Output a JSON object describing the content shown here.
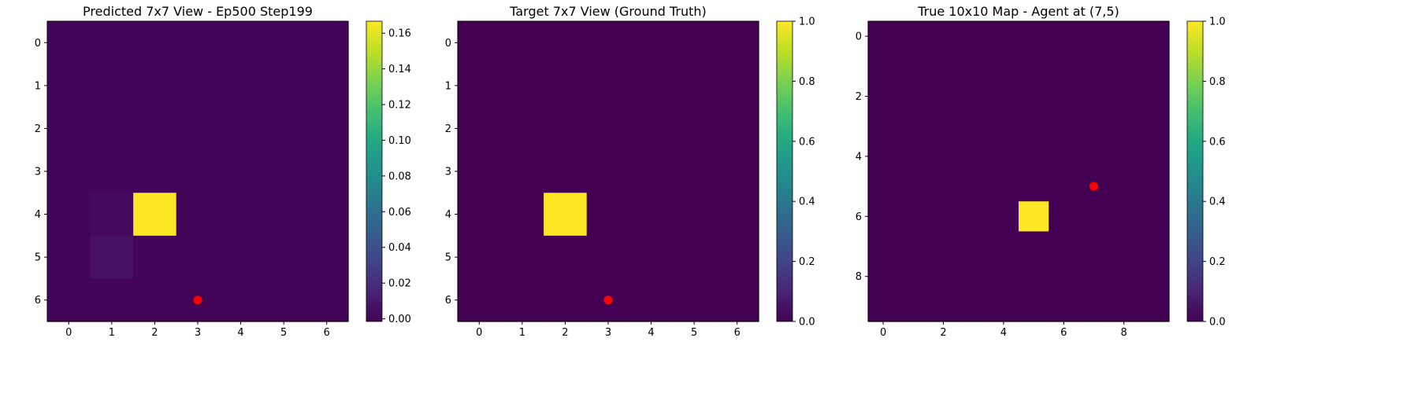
{
  "chart_data": [
    {
      "type": "heatmap",
      "title": "Predicted 7x7 View - Ep500 Step199",
      "xlabel": "",
      "ylabel": "",
      "rows": 7,
      "cols": 7,
      "x_ticks": [
        "0",
        "1",
        "2",
        "3",
        "4",
        "5",
        "6"
      ],
      "y_ticks": [
        "0",
        "1",
        "2",
        "3",
        "4",
        "5",
        "6"
      ],
      "colorbar_ticks": [
        "0.00",
        "0.02",
        "0.04",
        "0.06",
        "0.08",
        "0.10",
        "0.12",
        "0.14",
        "0.16"
      ],
      "vmin": -0.0015,
      "vmax": 0.1667,
      "colormap": "viridis",
      "values": [
        [
          0.0,
          0.0,
          0.0,
          0.0,
          0.0,
          0.0,
          0.0
        ],
        [
          0.0,
          0.0,
          0.0,
          0.0,
          0.0,
          0.0,
          0.0
        ],
        [
          0.0,
          0.0,
          0.0,
          0.0,
          0.0,
          0.0,
          0.0
        ],
        [
          0.0,
          0.0,
          0.0,
          0.0,
          0.0,
          0.0,
          0.0
        ],
        [
          0.0,
          0.003,
          0.1667,
          0.0,
          0.0,
          0.0,
          0.0
        ],
        [
          0.0,
          0.006,
          0.0,
          0.0,
          0.0,
          0.0,
          0.0
        ],
        [
          0.0,
          0.0,
          0.0,
          0.0,
          0.0,
          0.0,
          0.0
        ]
      ],
      "agent_marker": {
        "x": 3,
        "y": 6,
        "color": "#ff0000"
      }
    },
    {
      "type": "heatmap",
      "title": "Target 7x7 View (Ground Truth)",
      "xlabel": "",
      "ylabel": "",
      "rows": 7,
      "cols": 7,
      "x_ticks": [
        "0",
        "1",
        "2",
        "3",
        "4",
        "5",
        "6"
      ],
      "y_ticks": [
        "0",
        "1",
        "2",
        "3",
        "4",
        "5",
        "6"
      ],
      "colorbar_ticks": [
        "0.0",
        "0.2",
        "0.4",
        "0.6",
        "0.8",
        "1.0"
      ],
      "vmin": 0,
      "vmax": 1,
      "colormap": "viridis",
      "values": [
        [
          0,
          0,
          0,
          0,
          0,
          0,
          0
        ],
        [
          0,
          0,
          0,
          0,
          0,
          0,
          0
        ],
        [
          0,
          0,
          0,
          0,
          0,
          0,
          0
        ],
        [
          0,
          0,
          0,
          0,
          0,
          0,
          0
        ],
        [
          0,
          0,
          1,
          0,
          0,
          0,
          0
        ],
        [
          0,
          0,
          0,
          0,
          0,
          0,
          0
        ],
        [
          0,
          0,
          0,
          0,
          0,
          0,
          0
        ]
      ],
      "agent_marker": {
        "x": 3,
        "y": 6,
        "color": "#ff0000"
      }
    },
    {
      "type": "heatmap",
      "title": "True 10x10 Map - Agent at (7,5)",
      "xlabel": "",
      "ylabel": "",
      "rows": 10,
      "cols": 10,
      "x_ticks": [
        "0",
        "2",
        "4",
        "6",
        "8"
      ],
      "y_ticks": [
        "0",
        "2",
        "4",
        "6",
        "8"
      ],
      "colorbar_ticks": [
        "0.0",
        "0.2",
        "0.4",
        "0.6",
        "0.8",
        "1.0"
      ],
      "vmin": 0,
      "vmax": 1,
      "colormap": "viridis",
      "values": [
        [
          0,
          0,
          0,
          0,
          0,
          0,
          0,
          0,
          0,
          0
        ],
        [
          0,
          0,
          0,
          0,
          0,
          0,
          0,
          0,
          0,
          0
        ],
        [
          0,
          0,
          0,
          0,
          0,
          0,
          0,
          0,
          0,
          0
        ],
        [
          0,
          0,
          0,
          0,
          0,
          0,
          0,
          0,
          0,
          0
        ],
        [
          0,
          0,
          0,
          0,
          0,
          0,
          0,
          0,
          0,
          0
        ],
        [
          0,
          0,
          0,
          0,
          0,
          0,
          0,
          0,
          0,
          0
        ],
        [
          0,
          0,
          0,
          0,
          0,
          1,
          0,
          0,
          0,
          0
        ],
        [
          0,
          0,
          0,
          0,
          0,
          0,
          0,
          0,
          0,
          0
        ],
        [
          0,
          0,
          0,
          0,
          0,
          0,
          0,
          0,
          0,
          0
        ],
        [
          0,
          0,
          0,
          0,
          0,
          0,
          0,
          0,
          0,
          0
        ]
      ],
      "agent_marker": {
        "x": 7,
        "y": 5,
        "color": "#ff0000"
      }
    }
  ]
}
